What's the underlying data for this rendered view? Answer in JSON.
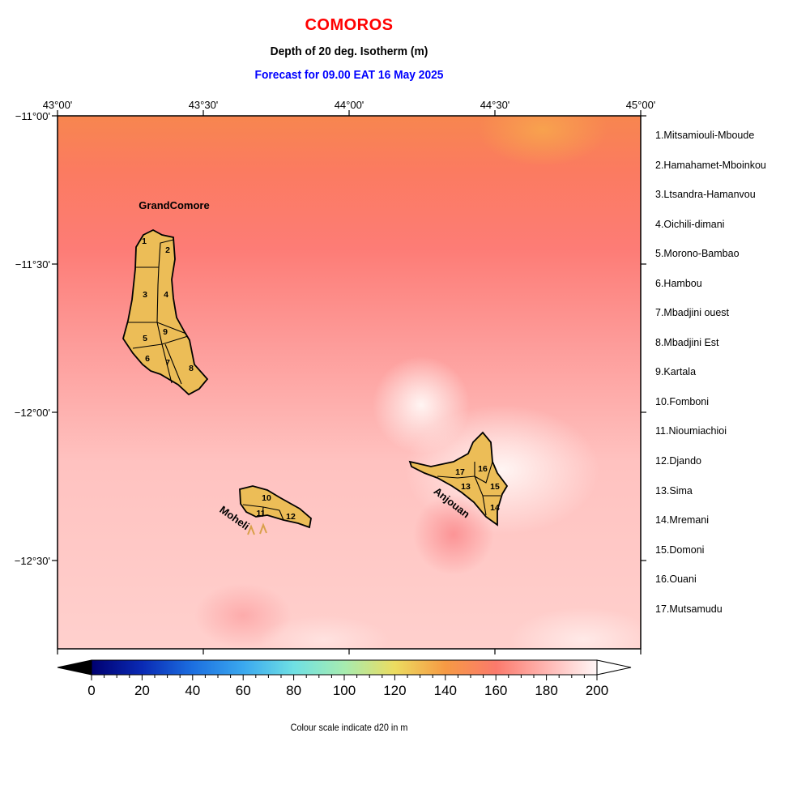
{
  "header": {
    "country": "COMOROS",
    "variable": "Depth of 20 deg. Isotherm (m)",
    "forecast": "Forecast for  09.00 EAT 16 May 2025"
  },
  "map": {
    "lon_labels": [
      "43°00'",
      "43°30'",
      "44°00'",
      "44°30'",
      "45°00'"
    ],
    "lat_labels": [
      "−11°00'",
      "−11°30'",
      "−12°00'",
      "−12°30'"
    ],
    "island_labels": {
      "grand_comore": "GrandComore",
      "moheli": "Moheli",
      "anjouan": "Anjouan"
    },
    "land_color": "#e8b95a",
    "region_numbers": [
      "1",
      "2",
      "3",
      "4",
      "5",
      "6",
      "7",
      "8",
      "9",
      "10",
      "11",
      "12",
      "13",
      "14",
      "15",
      "16",
      "17"
    ]
  },
  "legend": {
    "regions": [
      "1.Mitsamiouli-Mboude",
      "2.Hamahamet-Mboinkou",
      "3.Ltsandra-Hamanvou",
      "4.Oichili-dimani",
      "5.Morono-Bambao",
      "6.Hambou",
      "7.Mbadjini ouest",
      "8.Mbadjini Est",
      "9.Kartala",
      "10.Fomboni",
      "11.Nioumiachioi",
      "12.Djando",
      "13.Sima",
      "14.Mremani",
      "15.Domoni",
      "16.Ouani",
      "17.Mutsamudu"
    ]
  },
  "colorbar": {
    "min": 0,
    "max": 200,
    "tick_labels": [
      "0",
      "20",
      "40",
      "60",
      "80",
      "100",
      "120",
      "140",
      "160",
      "180",
      "200"
    ],
    "caption": "Colour scale indicate d20 in m"
  }
}
